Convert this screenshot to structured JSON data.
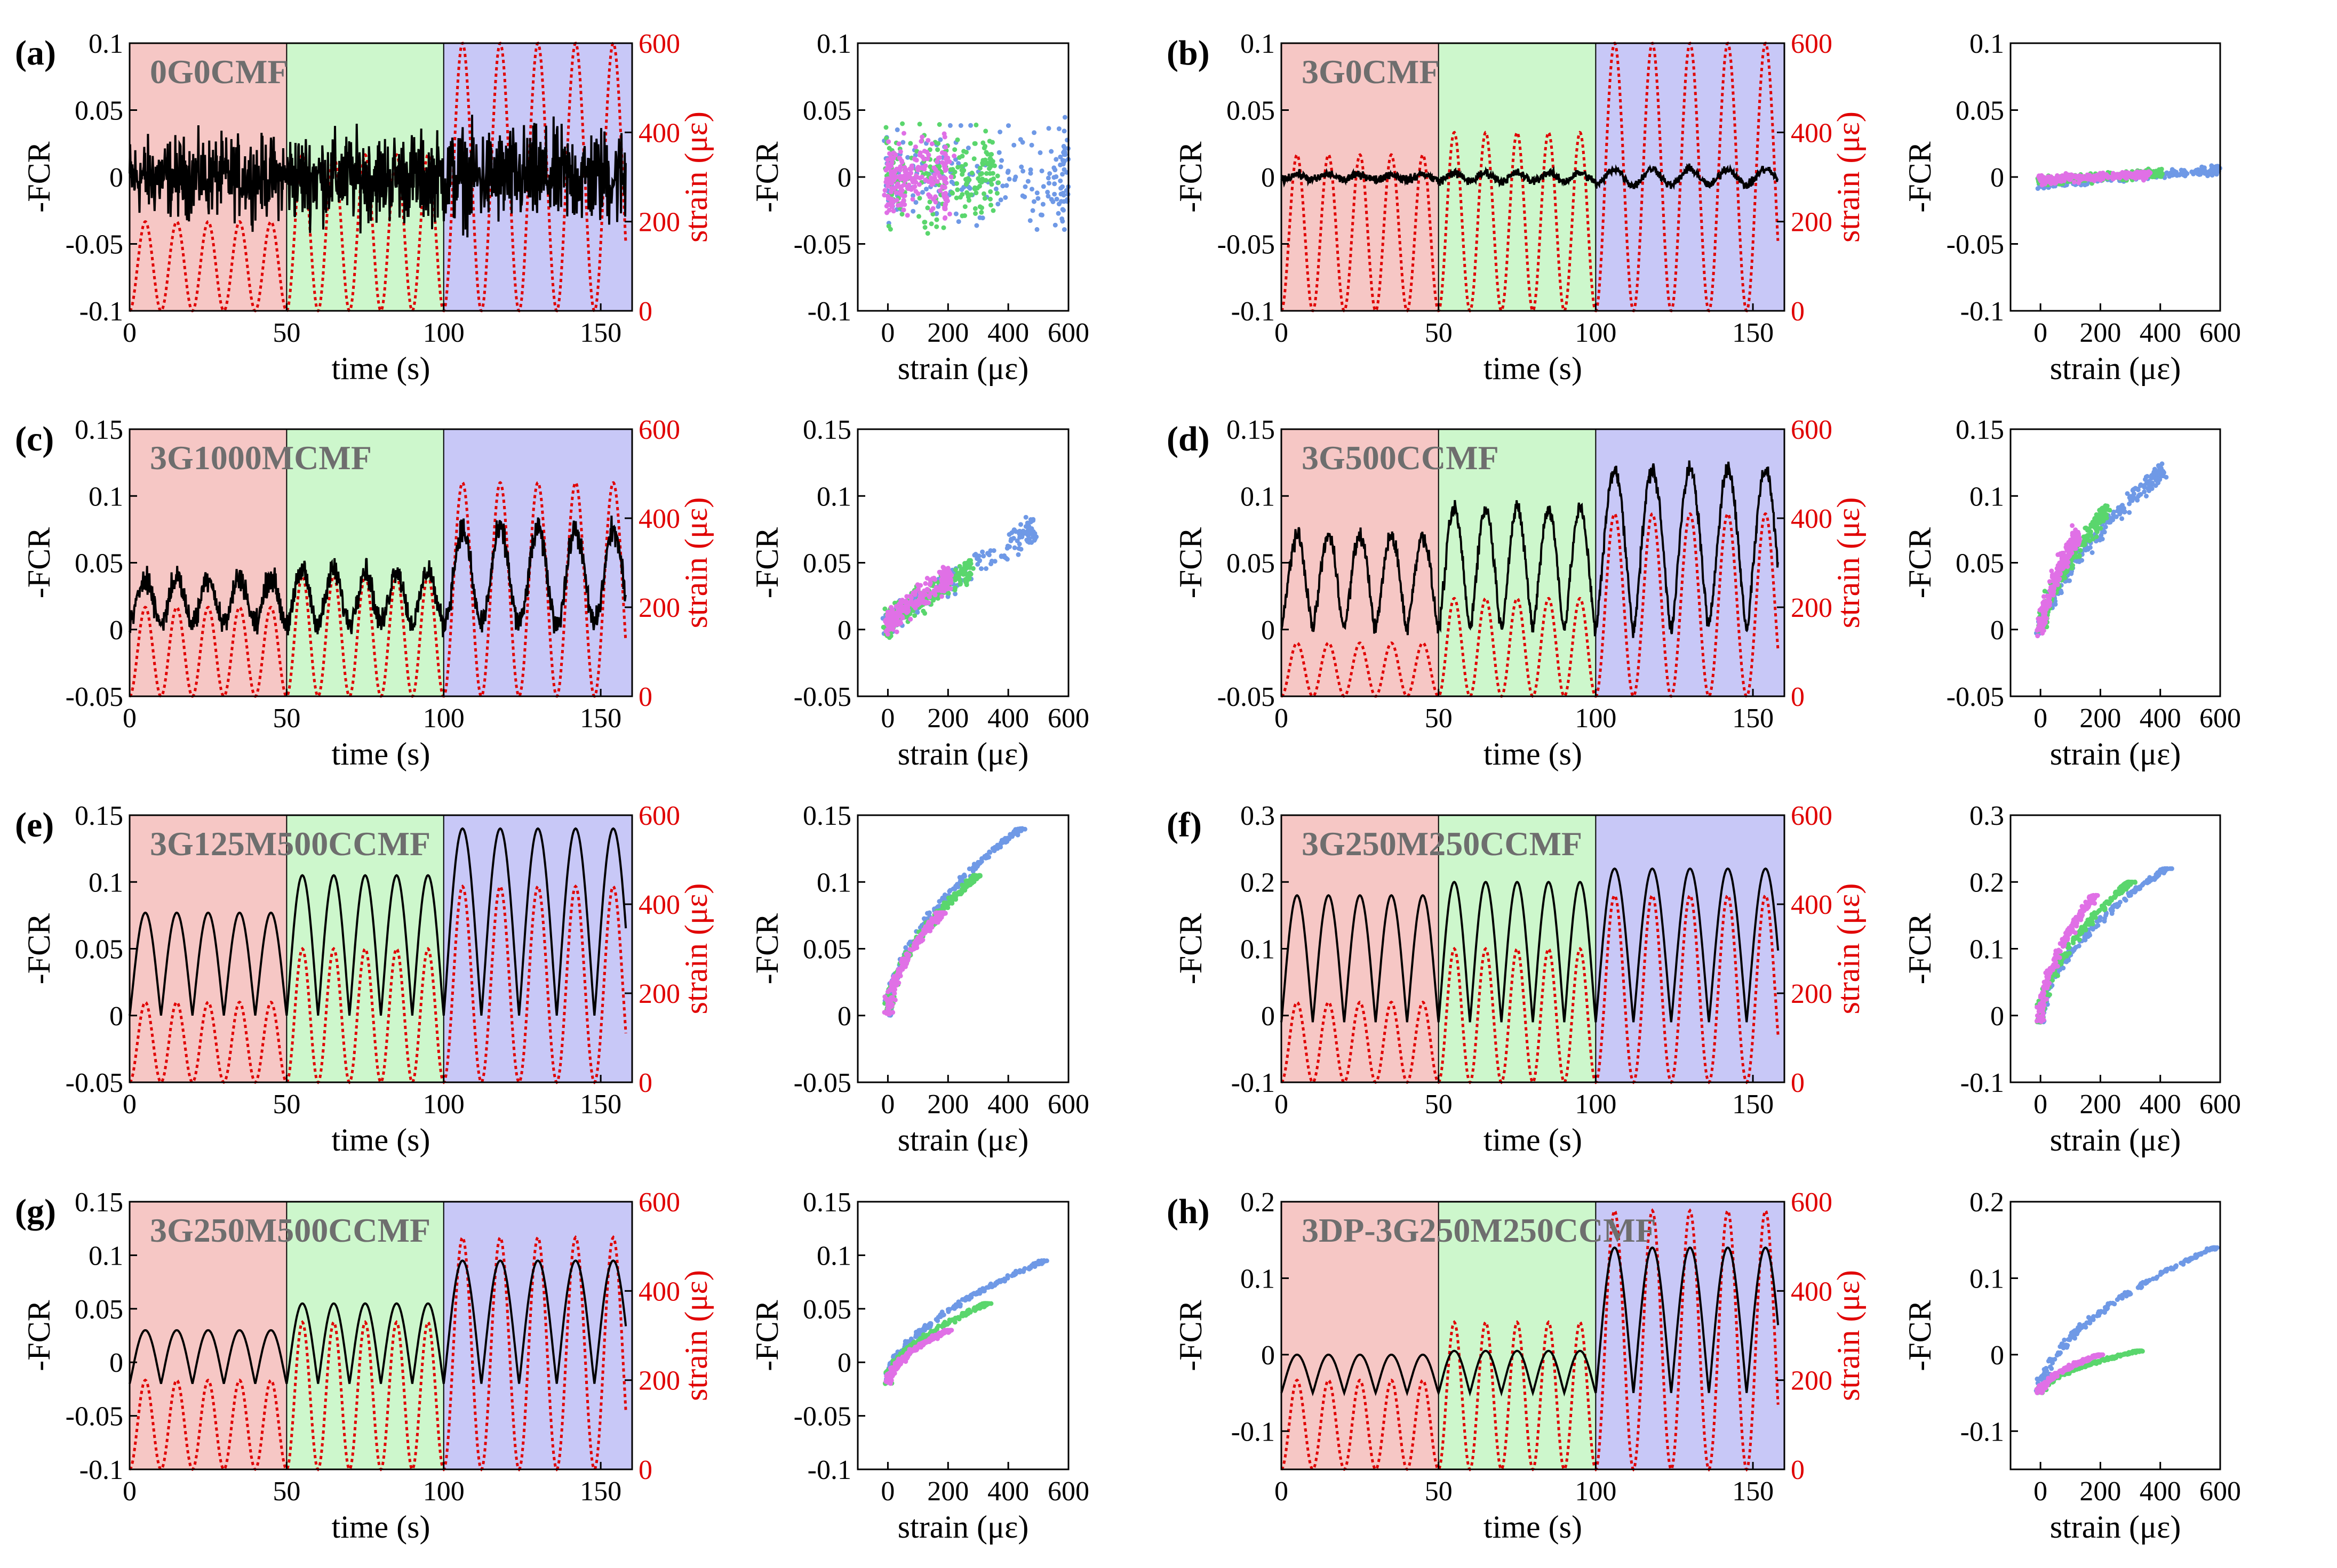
{
  "colors": {
    "region_low": "#f6c7c5",
    "region_mid": "#cdf7cc",
    "region_high": "#c8c8f7",
    "fcr_line": "#000000",
    "strain_line": "#e00000",
    "scatter_low": "#e070e6",
    "scatter_mid": "#5ad66d",
    "scatter_high": "#6f99e6"
  },
  "chart_data": [
    {
      "panel": "(a)",
      "sample": "0G0CMF",
      "type": "line",
      "time_xlim": [
        0,
        160
      ],
      "time_xticks": [
        "0",
        "50",
        "100",
        "150"
      ],
      "time_xlabel": "time (s)",
      "ylim": [
        -0.1,
        0.1
      ],
      "yticks": [
        "-0.1",
        "-0.05",
        "0",
        "0.05",
        "0.1"
      ],
      "ylabel": "-FCR",
      "strain_ylim": [
        0,
        600
      ],
      "strain_yticks": [
        "0",
        "200",
        "400",
        "600"
      ],
      "strain_ylabel": "strain (με)",
      "regions": [
        0,
        50,
        100,
        160
      ],
      "strain_amplitudes": [
        200,
        350,
        600
      ],
      "cycles_per_segment": [
        5,
        5,
        5
      ],
      "fcr_kind": "noise",
      "fcr_amplitudes": [
        0.04,
        0.045,
        0.05
      ],
      "fcr_base": 0.0,
      "scatter_type": "scatter",
      "scatter_xlim": [
        -100,
        600
      ],
      "scatter_xticks": [
        "0",
        "200",
        "400",
        "600"
      ],
      "scatter_xlabel": "strain (με)",
      "scatter_ylim": [
        -0.1,
        0.1
      ],
      "scatter_yticks": [
        "-0.1",
        "-0.05",
        "0",
        "0.05",
        "0.1"
      ]
    },
    {
      "panel": "(b)",
      "sample": "3G0CMF",
      "type": "line",
      "time_xlim": [
        0,
        160
      ],
      "time_xticks": [
        "0",
        "50",
        "100",
        "150"
      ],
      "time_xlabel": "time (s)",
      "ylim": [
        -0.1,
        0.1
      ],
      "yticks": [
        "-0.1",
        "-0.05",
        "0",
        "0.05",
        "0.1"
      ],
      "ylabel": "-FCR",
      "strain_ylim": [
        0,
        600
      ],
      "strain_yticks": [
        "0",
        "200",
        "400",
        "600"
      ],
      "strain_ylabel": "strain (με)",
      "regions": [
        0,
        50,
        100,
        160
      ],
      "strain_amplitudes": [
        350,
        400,
        600
      ],
      "cycles_per_segment": [
        5,
        5,
        5
      ],
      "fcr_kind": "flat",
      "fcr_amplitudes": [
        0.004,
        0.006,
        0.012
      ],
      "fcr_base": 0.0,
      "scatter_type": "scatter",
      "scatter_xlim": [
        -100,
        600
      ],
      "scatter_xticks": [
        "0",
        "200",
        "400",
        "600"
      ],
      "scatter_xlabel": "strain (με)",
      "scatter_ylim": [
        -0.1,
        0.1
      ],
      "scatter_yticks": [
        "-0.1",
        "-0.05",
        "0",
        "0.05",
        "0.1"
      ]
    },
    {
      "panel": "(c)",
      "sample": "3G1000MCMF",
      "type": "line",
      "time_xlim": [
        0,
        160
      ],
      "time_xticks": [
        "0",
        "50",
        "100",
        "150"
      ],
      "time_xlabel": "time (s)",
      "ylim": [
        -0.05,
        0.15
      ],
      "yticks": [
        "-0.05",
        "0",
        "0.05",
        "0.1",
        "0.15"
      ],
      "ylabel": "-FCR",
      "strain_ylim": [
        0,
        600
      ],
      "strain_yticks": [
        "0",
        "200",
        "400",
        "600"
      ],
      "strain_ylabel": "strain (με)",
      "regions": [
        0,
        50,
        100,
        160
      ],
      "strain_amplitudes": [
        200,
        270,
        480
      ],
      "cycles_per_segment": [
        5,
        5,
        5
      ],
      "fcr_kind": "noisy_wave",
      "fcr_amplitudes": [
        0.035,
        0.04,
        0.07
      ],
      "fcr_base": 0.005,
      "scatter_type": "scatter",
      "scatter_xlim": [
        -100,
        600
      ],
      "scatter_xticks": [
        "0",
        "200",
        "400",
        "600"
      ],
      "scatter_xlabel": "strain (με)",
      "scatter_ylim": [
        -0.05,
        0.15
      ],
      "scatter_yticks": [
        "-0.05",
        "0",
        "0.05",
        "0.1",
        "0.15"
      ]
    },
    {
      "panel": "(d)",
      "sample": "3G500CCMF",
      "type": "line",
      "time_xlim": [
        0,
        160
      ],
      "time_xticks": [
        "0",
        "50",
        "100",
        "150"
      ],
      "time_xlabel": "time (s)",
      "ylim": [
        -0.05,
        0.15
      ],
      "yticks": [
        "-0.05",
        "0",
        "0.05",
        "0.1",
        "0.15"
      ],
      "ylabel": "-FCR",
      "strain_ylim": [
        0,
        600
      ],
      "strain_yticks": [
        "0",
        "200",
        "400",
        "600"
      ],
      "strain_ylabel": "strain (με)",
      "regions": [
        0,
        50,
        100,
        160
      ],
      "strain_amplitudes": [
        120,
        220,
        410
      ],
      "cycles_per_segment": [
        5,
        5,
        5
      ],
      "fcr_kind": "wave",
      "fcr_amplitudes": [
        0.07,
        0.09,
        0.12
      ],
      "fcr_base": 0.0,
      "scatter_type": "scatter",
      "scatter_xlim": [
        -100,
        600
      ],
      "scatter_xticks": [
        "0",
        "200",
        "400",
        "600"
      ],
      "scatter_xlabel": "strain (με)",
      "scatter_ylim": [
        -0.05,
        0.15
      ],
      "scatter_yticks": [
        "-0.05",
        "0",
        "0.05",
        "0.1",
        "0.15"
      ]
    },
    {
      "panel": "(e)",
      "sample": "3G125M500CCMF",
      "type": "line",
      "time_xlim": [
        0,
        160
      ],
      "time_xticks": [
        "0",
        "50",
        "100",
        "150"
      ],
      "time_xlabel": "time (s)",
      "ylim": [
        -0.05,
        0.15
      ],
      "yticks": [
        "-0.05",
        "0",
        "0.05",
        "0.1",
        "0.15"
      ],
      "ylabel": "-FCR",
      "strain_ylim": [
        0,
        600
      ],
      "strain_yticks": [
        "0",
        "200",
        "400",
        "600"
      ],
      "strain_ylabel": "strain (με)",
      "regions": [
        0,
        50,
        100,
        160
      ],
      "strain_amplitudes": [
        180,
        300,
        440
      ],
      "cycles_per_segment": [
        5,
        5,
        5
      ],
      "fcr_kind": "smooth",
      "fcr_amplitudes": [
        0.077,
        0.105,
        0.14
      ],
      "fcr_base": 0.0,
      "scatter_type": "scatter",
      "scatter_xlim": [
        -100,
        600
      ],
      "scatter_xticks": [
        "0",
        "200",
        "400",
        "600"
      ],
      "scatter_xlabel": "strain (με)",
      "scatter_ylim": [
        -0.05,
        0.15
      ],
      "scatter_yticks": [
        "-0.05",
        "0",
        "0.05",
        "0.1",
        "0.15"
      ]
    },
    {
      "panel": "(f)",
      "sample": "3G250M250CCMF",
      "type": "line",
      "time_xlim": [
        0,
        160
      ],
      "time_xticks": [
        "0",
        "50",
        "100",
        "150"
      ],
      "time_xlabel": "time (s)",
      "ylim": [
        -0.1,
        0.3
      ],
      "yticks": [
        "-0.1",
        "0",
        "0.1",
        "0.2",
        "0.3"
      ],
      "ylabel": "-FCR",
      "strain_ylim": [
        0,
        600
      ],
      "strain_yticks": [
        "0",
        "200",
        "400",
        "600"
      ],
      "strain_ylabel": "strain (με)",
      "regions": [
        0,
        50,
        100,
        160
      ],
      "strain_amplitudes": [
        180,
        300,
        420
      ],
      "cycles_per_segment": [
        5,
        5,
        5
      ],
      "fcr_kind": "smooth",
      "fcr_amplitudes": [
        0.19,
        0.21,
        0.23
      ],
      "fcr_base": -0.01,
      "scatter_type": "scatter",
      "scatter_xlim": [
        -100,
        600
      ],
      "scatter_xticks": [
        "0",
        "200",
        "400",
        "600"
      ],
      "scatter_xlabel": "strain (με)",
      "scatter_ylim": [
        -0.1,
        0.3
      ],
      "scatter_yticks": [
        "-0.1",
        "0",
        "0.1",
        "0.2",
        "0.3"
      ]
    },
    {
      "panel": "(g)",
      "sample": "3G250M500CCMF",
      "type": "line",
      "time_xlim": [
        0,
        160
      ],
      "time_xticks": [
        "0",
        "50",
        "100",
        "150"
      ],
      "time_xlabel": "time (s)",
      "ylim": [
        -0.1,
        0.15
      ],
      "yticks": [
        "-0.1",
        "-0.05",
        "0",
        "0.05",
        "0.1",
        "0.15"
      ],
      "ylabel": "-FCR",
      "strain_ylim": [
        0,
        600
      ],
      "strain_yticks": [
        "0",
        "200",
        "400",
        "600"
      ],
      "strain_ylabel": "strain (με)",
      "regions": [
        0,
        50,
        100,
        160
      ],
      "strain_amplitudes": [
        200,
        330,
        520
      ],
      "cycles_per_segment": [
        5,
        5,
        5
      ],
      "fcr_kind": "smooth",
      "fcr_amplitudes": [
        0.05,
        0.075,
        0.115
      ],
      "fcr_base": -0.02,
      "scatter_type": "scatter",
      "scatter_xlim": [
        -100,
        600
      ],
      "scatter_xticks": [
        "0",
        "200",
        "400",
        "600"
      ],
      "scatter_xlabel": "strain (με)",
      "scatter_ylim": [
        -0.1,
        0.15
      ],
      "scatter_yticks": [
        "-0.1",
        "-0.05",
        "0",
        "0.05",
        "0.1",
        "0.15"
      ]
    },
    {
      "panel": "(h)",
      "sample": "3DP-3G250M250CCMF",
      "type": "line",
      "time_xlim": [
        0,
        160
      ],
      "time_xticks": [
        "0",
        "50",
        "100",
        "150"
      ],
      "time_xlabel": "time (s)",
      "ylim": [
        -0.15,
        0.2
      ],
      "yticks": [
        "-0.1",
        "0",
        "0.1",
        "0.2"
      ],
      "ylabel": "-FCR",
      "strain_ylim": [
        0,
        600
      ],
      "strain_yticks": [
        "0",
        "200",
        "400",
        "600"
      ],
      "strain_ylabel": "strain (με)",
      "regions": [
        0,
        50,
        100,
        160
      ],
      "strain_amplitudes": [
        200,
        330,
        580
      ],
      "cycles_per_segment": [
        5,
        5,
        5
      ],
      "fcr_kind": "smooth",
      "fcr_amplitudes": [
        0.05,
        0.055,
        0.19
      ],
      "fcr_base": -0.05,
      "scatter_type": "scatter",
      "scatter_xlim": [
        -100,
        600
      ],
      "scatter_xticks": [
        "0",
        "200",
        "400",
        "600"
      ],
      "scatter_xlabel": "strain (με)",
      "scatter_ylim": [
        -0.15,
        0.2
      ],
      "scatter_yticks": [
        "-0.1",
        "0",
        "0.1",
        "0.2"
      ]
    }
  ]
}
